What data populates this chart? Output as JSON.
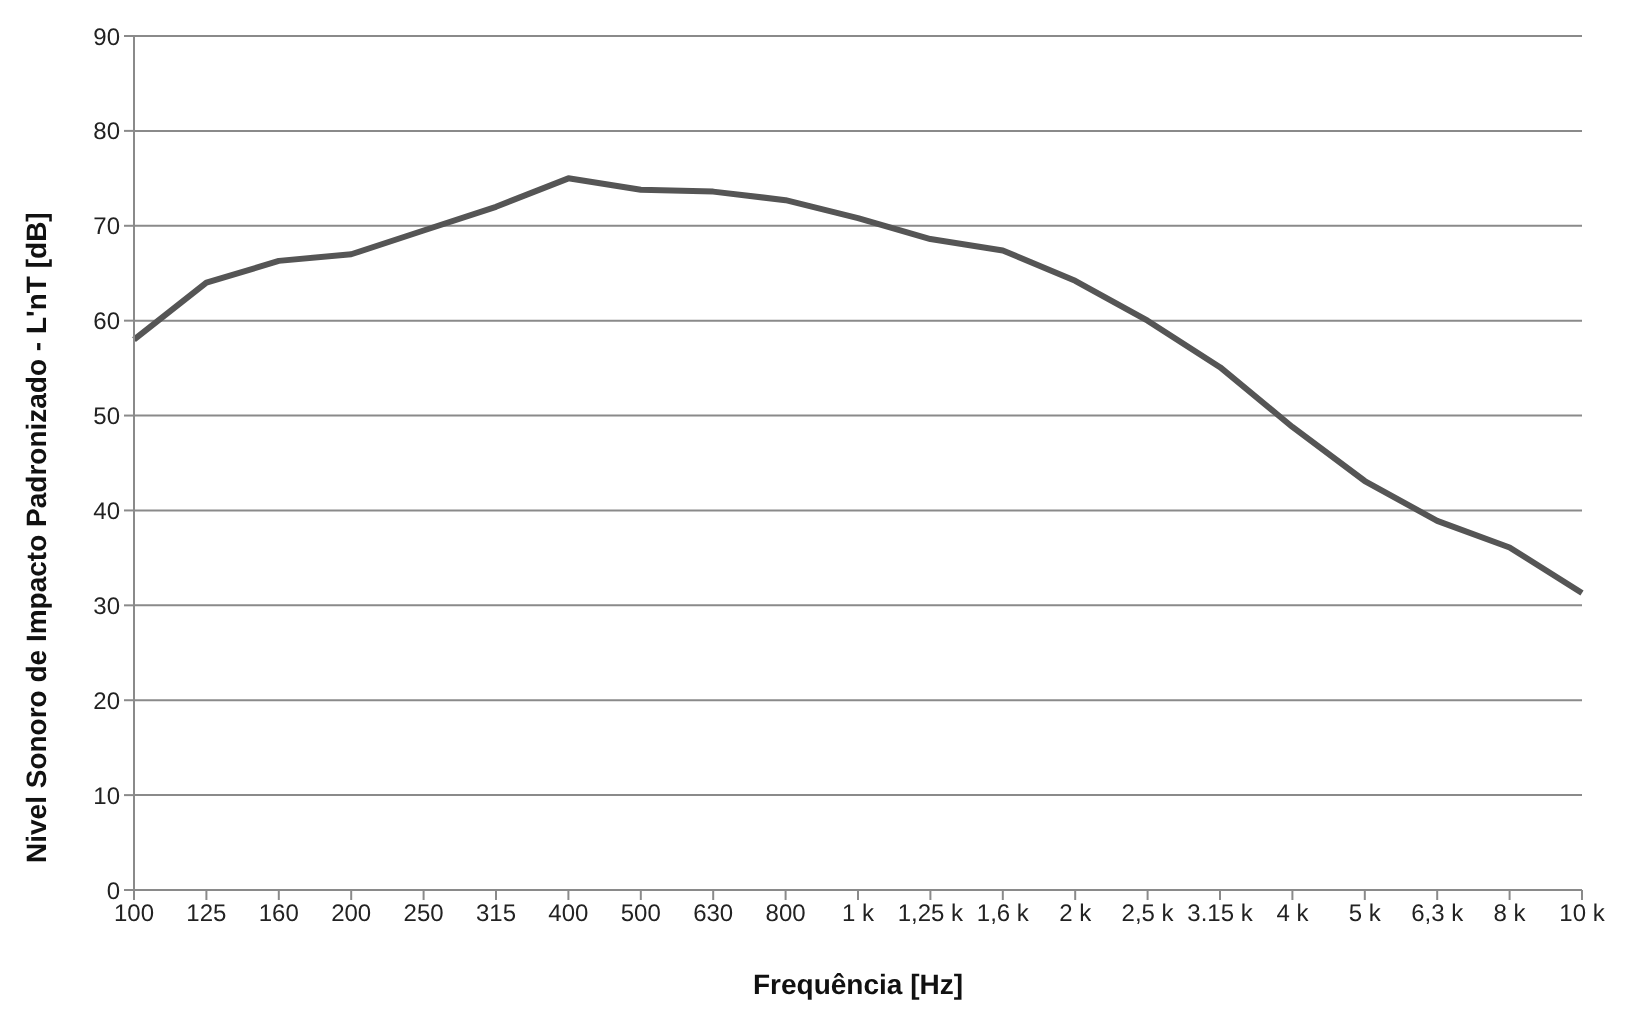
{
  "chart_data": {
    "type": "line",
    "xlabel": "Frequência [Hz]",
    "ylabel": "Nivel Sonoro de Impacto Padronizado - L'nT [dB]",
    "categories": [
      "100",
      "125",
      "160",
      "200",
      "250",
      "315",
      "400",
      "500",
      "630",
      "800",
      "1 k",
      "1,25 k",
      "1,6 k",
      "2 k",
      "2,5 k",
      "3.15 k",
      "4 k",
      "5 k",
      "6,3 k",
      "8 k",
      "10 k"
    ],
    "series": [
      {
        "color": "#555555",
        "values": [
          58,
          64,
          66.3,
          67,
          69.5,
          72,
          75,
          73.8,
          73.6,
          72.7,
          70.8,
          68.6,
          67.4,
          64.2,
          60,
          55.1,
          48.8,
          43.1,
          38.9,
          36.1,
          31.3
        ]
      }
    ],
    "ylim": [
      0,
      90
    ],
    "yticks": [
      0,
      10,
      20,
      30,
      40,
      50,
      60,
      70,
      80,
      90
    ],
    "grid": "y",
    "legend": false,
    "marker": "none",
    "line_style": "solid"
  }
}
